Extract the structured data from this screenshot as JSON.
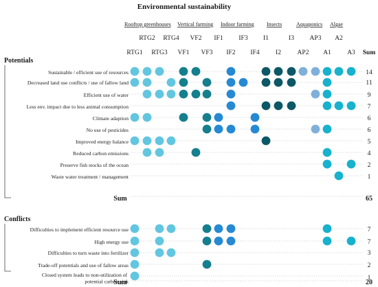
{
  "title": "Environmental sustainability",
  "groups": [
    "Rooftop greenhouses",
    "Vertical farming",
    "Indoor farming",
    "Insects",
    "Aquaponics",
    "Algae"
  ],
  "columns_top": [
    "RTG2",
    "RTG4",
    "VF2",
    "IF1",
    "IF3",
    "I1",
    "I3",
    "AP3",
    "A2"
  ],
  "columns_bottom": [
    "RTG1",
    "RTG3",
    "VF1",
    "VF3",
    "IF2",
    "IF4",
    "I2",
    "AP2",
    "A1",
    "A3"
  ],
  "sum_label": "Sum",
  "sections": [
    {
      "title": "Potentials",
      "rows": [
        {
          "label": "Sustainable / efficient use of resources",
          "sum": "14"
        },
        {
          "label": "Decreased land use conflicts / use of fallow land",
          "sum": "11"
        },
        {
          "label": "Efficient use of water",
          "sum": "9"
        },
        {
          "label": "Less env. impact due to less animal consumption",
          "sum": "7"
        },
        {
          "label": "Climate adaption",
          "sum": "6"
        },
        {
          "label": "No use of pesticides",
          "sum": "6"
        },
        {
          "label": "Improved energy balance",
          "sum": "5"
        },
        {
          "label": "Reduced carbon emissions",
          "sum": "4"
        },
        {
          "label": "Preserve fish stocks of the ocean",
          "sum": "2"
        },
        {
          "label": "Waste water treatment / management",
          "sum": "1"
        }
      ],
      "total_label": "Sum",
      "total": "65"
    },
    {
      "title": "Conflicts",
      "rows": [
        {
          "label": "Difficulties to implement efficient resource use",
          "sum": "7"
        },
        {
          "label": "High energy use",
          "sum": "7"
        },
        {
          "label": "Difficulties to turn waste into fertilizer",
          "sum": "3"
        },
        {
          "label": "Trade-off potentials and use of fallow areas",
          "sum": "2"
        },
        {
          "label": "Closed system leads to non-utilization of potential carbon sink",
          "sum": "1"
        }
      ],
      "total_label": "Sum",
      "total": "20"
    }
  ],
  "colors": {
    "RTG": "#62c6e0",
    "VF": "#157f8e",
    "IF": "#2689d4",
    "I": "#0c5866",
    "AP": "#7fb0d9",
    "A": "#17b2cd",
    "grid": "#bdbdbd"
  }
}
